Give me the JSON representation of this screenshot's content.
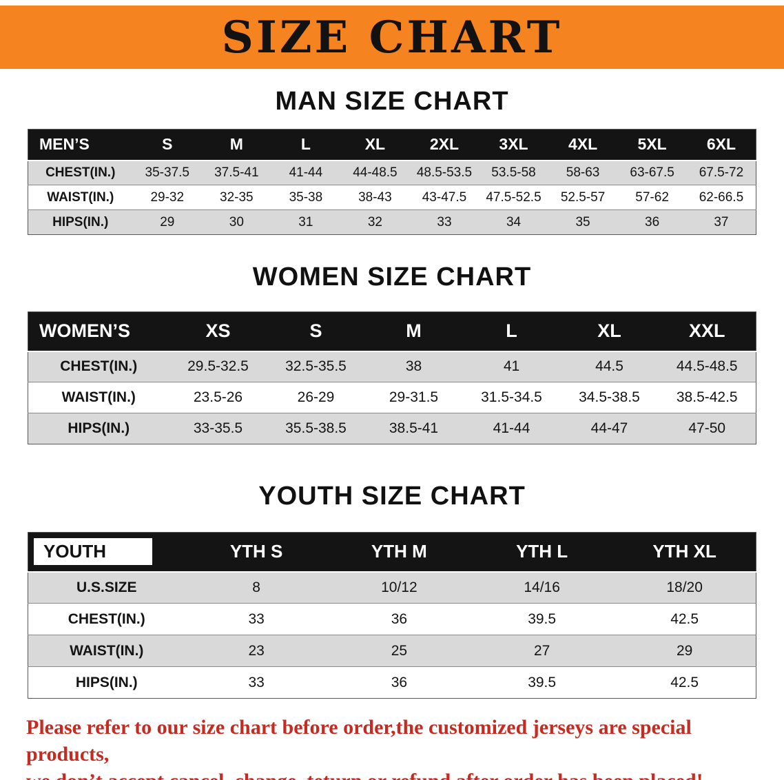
{
  "banner": {
    "title": "SIZE CHART",
    "bg_color": "#F5831F",
    "text_color": "#121212"
  },
  "sections": {
    "men": {
      "heading": "MAN SIZE CHART"
    },
    "women": {
      "heading": "WOMEN SIZE CHART"
    },
    "youth": {
      "heading": "YOUTH SIZE CHART"
    }
  },
  "tables": {
    "men": {
      "header": [
        "MEN’S",
        "S",
        "M",
        "L",
        "XL",
        "2XL",
        "3XL",
        "4XL",
        "5XL",
        "6XL"
      ],
      "rows": [
        [
          "CHEST(IN.)",
          "35-37.5",
          "37.5-41",
          "41-44",
          "44-48.5",
          "48.5-53.5",
          "53.5-58",
          "58-63",
          "63-67.5",
          "67.5-72"
        ],
        [
          "WAIST(IN.)",
          "29-32",
          "32-35",
          "35-38",
          "38-43",
          "43-47.5",
          "47.5-52.5",
          "52.5-57",
          "57-62",
          "62-66.5"
        ],
        [
          "HIPS(IN.)",
          "29",
          "30",
          "31",
          "32",
          "33",
          "34",
          "35",
          "36",
          "37"
        ]
      ]
    },
    "women": {
      "header": [
        "WOMEN’S",
        "XS",
        "S",
        "M",
        "L",
        "XL",
        "XXL"
      ],
      "rows": [
        [
          "CHEST(IN.)",
          "29.5-32.5",
          "32.5-35.5",
          "38",
          "41",
          "44.5",
          "44.5-48.5"
        ],
        [
          "WAIST(IN.)",
          "23.5-26",
          "26-29",
          "29-31.5",
          "31.5-34.5",
          "34.5-38.5",
          "38.5-42.5"
        ],
        [
          "HIPS(IN.)",
          "33-35.5",
          "35.5-38.5",
          "38.5-41",
          "41-44",
          "44-47",
          "47-50"
        ]
      ]
    },
    "youth": {
      "header": [
        "YOUTH",
        "YTH S",
        "YTH M",
        "YTH L",
        "YTH XL"
      ],
      "rows": [
        [
          "U.S.SIZE",
          "8",
          "10/12",
          "14/16",
          "18/20"
        ],
        [
          "CHEST(IN.)",
          "33",
          "36",
          "39.5",
          "42.5"
        ],
        [
          "WAIST(IN.)",
          "23",
          "25",
          "27",
          "29"
        ],
        [
          "HIPS(IN.)",
          "33",
          "36",
          "39.5",
          "42.5"
        ]
      ]
    }
  },
  "footer": {
    "line1": "Please refer to our size chart before order,the customized jerseys are special products,",
    "line2": "we don’t accept cancel, change, teturn or refund after order has been placed!",
    "text_color": "#C52B21"
  },
  "colors": {
    "banner_orange": "#F5831F",
    "table_header_bg": "#141414",
    "row_alt_gray": "#D9D9D9",
    "disclaimer_red": "#C52B21"
  }
}
